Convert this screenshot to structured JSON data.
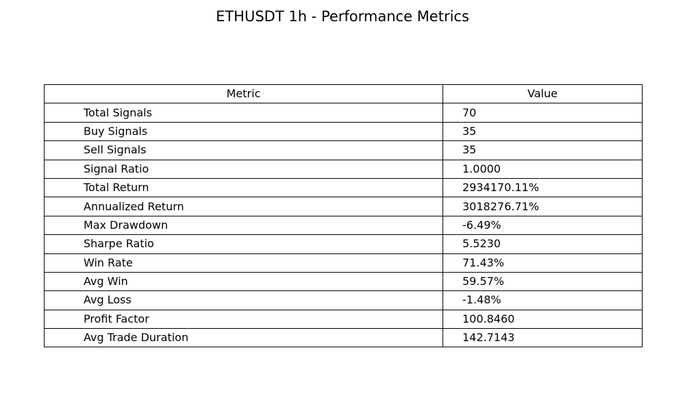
{
  "chart_data": {
    "type": "table",
    "title": "ETHUSDT 1h - Performance Metrics",
    "columns": [
      "Metric",
      "Value"
    ],
    "rows": [
      {
        "metric": "Total Signals",
        "value": "70"
      },
      {
        "metric": "Buy Signals",
        "value": "35"
      },
      {
        "metric": "Sell Signals",
        "value": "35"
      },
      {
        "metric": "Signal Ratio",
        "value": "1.0000"
      },
      {
        "metric": "Total Return",
        "value": "2934170.11%"
      },
      {
        "metric": "Annualized Return",
        "value": "3018276.71%"
      },
      {
        "metric": "Max Drawdown",
        "value": "-6.49%"
      },
      {
        "metric": "Sharpe Ratio",
        "value": "5.5230"
      },
      {
        "metric": "Win Rate",
        "value": "71.43%"
      },
      {
        "metric": "Avg Win",
        "value": "59.57%"
      },
      {
        "metric": "Avg Loss",
        "value": "-1.48%"
      },
      {
        "metric": "Profit Factor",
        "value": "100.8460"
      },
      {
        "metric": "Avg Trade Duration",
        "value": "142.7143"
      }
    ]
  }
}
